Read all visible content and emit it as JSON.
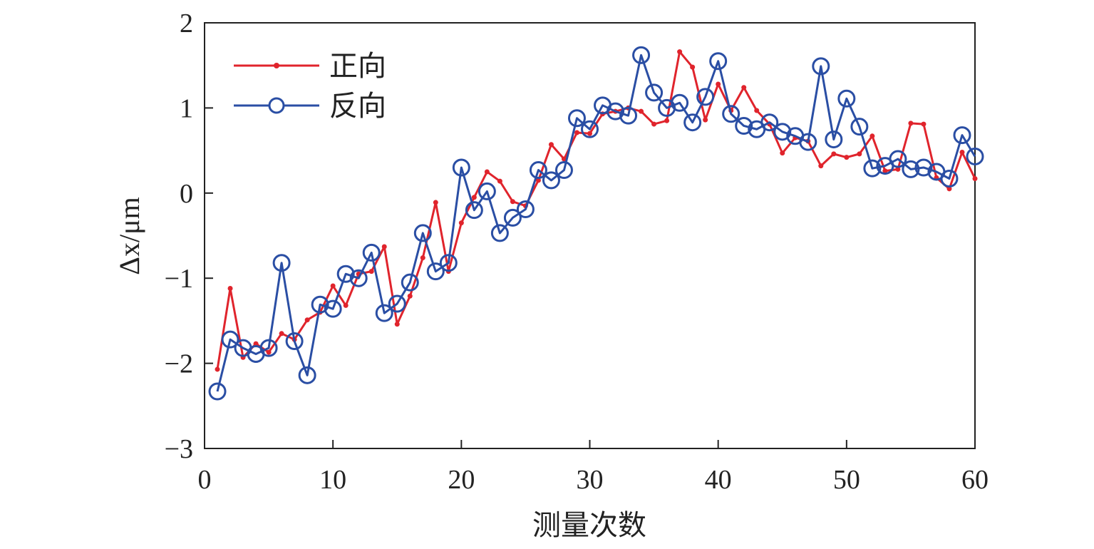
{
  "chart_data": {
    "type": "line",
    "xlabel": "测量次数",
    "ylabel": "Δx/μm",
    "xlim": [
      0,
      60
    ],
    "ylim": [
      -3,
      2
    ],
    "xticks": [
      0,
      10,
      20,
      30,
      40,
      50,
      60
    ],
    "yticks": [
      -3,
      -2,
      -1,
      0,
      1,
      2
    ],
    "xtick_labels": [
      "0",
      "10",
      "20",
      "30",
      "40",
      "50",
      "60"
    ],
    "ytick_labels": [
      "−3",
      "−2",
      "−1",
      "0",
      "1",
      "2"
    ],
    "grid": false,
    "legend_position": "top-left",
    "x": [
      1,
      2,
      3,
      4,
      5,
      6,
      7,
      8,
      9,
      10,
      11,
      12,
      13,
      14,
      15,
      16,
      17,
      18,
      19,
      20,
      21,
      22,
      23,
      24,
      25,
      26,
      27,
      28,
      29,
      30,
      31,
      32,
      33,
      34,
      35,
      36,
      37,
      38,
      39,
      40,
      41,
      42,
      43,
      44,
      45,
      46,
      47,
      48,
      49,
      50,
      51,
      52,
      53,
      54,
      55,
      56,
      57,
      58,
      59,
      60
    ],
    "series": [
      {
        "name": "正向",
        "color": "#e0242c",
        "marker": "dot",
        "values": [
          -2.07,
          -1.12,
          -1.93,
          -1.77,
          -1.87,
          -1.65,
          -1.72,
          -1.49,
          -1.4,
          -1.09,
          -1.32,
          -0.95,
          -0.92,
          -0.63,
          -1.54,
          -1.21,
          -0.76,
          -0.11,
          -0.92,
          -0.35,
          -0.05,
          0.25,
          0.14,
          -0.1,
          -0.15,
          0.15,
          0.57,
          0.4,
          0.71,
          0.7,
          0.93,
          0.96,
          1.0,
          0.96,
          0.81,
          0.85,
          1.66,
          1.48,
          0.86,
          1.28,
          0.97,
          1.24,
          0.97,
          0.81,
          0.47,
          0.65,
          0.61,
          0.32,
          0.46,
          0.42,
          0.46,
          0.67,
          0.26,
          0.28,
          0.82,
          0.81,
          0.18,
          0.05,
          0.48,
          0.17
        ]
      },
      {
        "name": "反向",
        "color": "#2a4ea4",
        "marker": "circle",
        "values": [
          -2.33,
          -1.72,
          -1.82,
          -1.89,
          -1.82,
          -0.82,
          -1.74,
          -2.14,
          -1.31,
          -1.36,
          -0.95,
          -1.0,
          -0.7,
          -1.41,
          -1.3,
          -1.05,
          -0.47,
          -0.92,
          -0.82,
          0.3,
          -0.2,
          0.02,
          -0.47,
          -0.29,
          -0.19,
          0.27,
          0.15,
          0.27,
          0.88,
          0.75,
          1.03,
          0.96,
          0.91,
          1.62,
          1.18,
          1.0,
          1.06,
          0.83,
          1.13,
          1.55,
          0.93,
          0.79,
          0.75,
          0.83,
          0.72,
          0.67,
          0.6,
          1.49,
          0.63,
          1.11,
          0.78,
          0.29,
          0.32,
          0.4,
          0.28,
          0.3,
          0.25,
          0.17,
          0.68,
          0.43
        ]
      }
    ]
  }
}
